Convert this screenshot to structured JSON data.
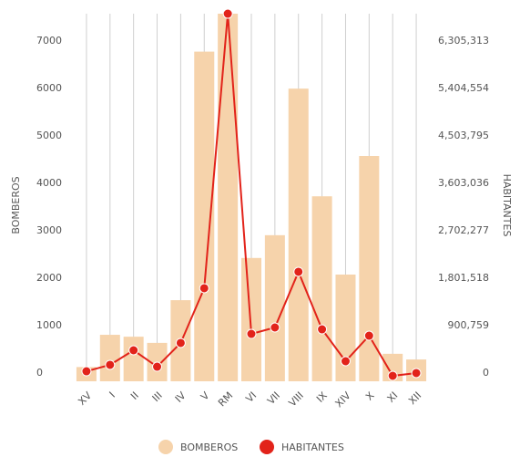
{
  "chart_data": {
    "type": "bar_line",
    "categories": [
      "XV",
      "I",
      "II",
      "III",
      "IV",
      "V",
      "RM",
      "VI",
      "VII",
      "VIII",
      "IX",
      "XIV",
      "X",
      "XI",
      "XII"
    ],
    "ylabel": "BOMBEROS",
    "y2label": "HABITANTES",
    "series": [
      {
        "name": "BOMBEROS",
        "type": "bar",
        "color": "#f6d3ab",
        "axis": "y",
        "values": [
          300,
          980,
          940,
          810,
          1710,
          6950,
          7750,
          2600,
          3080,
          6170,
          3900,
          2250,
          4750,
          580,
          460
        ]
      },
      {
        "name": "HABITANTES",
        "type": "line",
        "color": "#e2231a",
        "axis": "y2",
        "values": [
          190000,
          312000,
          589000,
          277000,
          728000,
          1767000,
          6980000,
          900000,
          1022000,
          2079000,
          987000,
          381000,
          866000,
          104000,
          156000
        ]
      }
    ],
    "ylim": [
      0,
      7750
    ],
    "yticks": [
      0,
      1000,
      2000,
      3000,
      4000,
      5000,
      6000,
      7000
    ],
    "y2lim": [
      0,
      6980882
    ],
    "y2ticks": [
      0,
      {
        "value": 900759,
        "label": "900,759"
      },
      {
        "value": 1801518,
        "label": "1,801,518"
      },
      {
        "value": 2702277,
        "label": "2,702,277"
      },
      {
        "value": 3603036,
        "label": "3,603,036"
      },
      {
        "value": 4503795,
        "label": "4,503,795"
      },
      {
        "value": 5404554,
        "label": "5,404,554"
      },
      {
        "value": 6305313,
        "label": "6,305,313"
      }
    ],
    "legend": "bottom"
  }
}
